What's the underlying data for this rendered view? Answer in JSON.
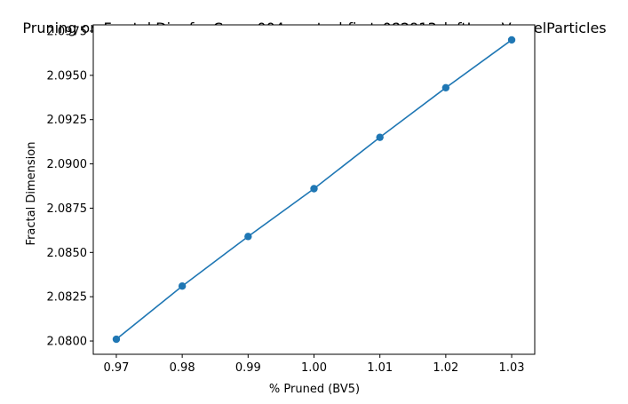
{
  "chart_data": {
    "type": "line",
    "title": "Pruning on Fractal Dim for Case: 004_pect_phfirst_082913_leftLungVesselParticles",
    "xlabel": "% Pruned (BV5)",
    "ylabel": "Fractal Dimension",
    "x": [
      0.97,
      0.98,
      0.99,
      1.0,
      1.01,
      1.02,
      1.03
    ],
    "x_tick_labels": [
      "0.97",
      "0.98",
      "0.99",
      "1.00",
      "1.01",
      "1.02",
      "1.03"
    ],
    "y_ticks": [
      2.08,
      2.0825,
      2.085,
      2.0875,
      2.09,
      2.0925,
      2.095,
      2.0975
    ],
    "y_tick_labels": [
      "2.0800",
      "2.0825",
      "2.0850",
      "2.0875",
      "2.0900",
      "2.0925",
      "2.0950",
      "2.0975"
    ],
    "series": [
      {
        "values": [
          2.0801,
          2.0831,
          2.0859,
          2.0886,
          2.0915,
          2.0943,
          2.097
        ],
        "color": "#1f77b4",
        "marker": "circle"
      }
    ],
    "xlim": [
      0.9665,
      1.0335
    ],
    "ylim": [
      2.07925,
      2.09785
    ],
    "grid": false,
    "legend": "none"
  }
}
